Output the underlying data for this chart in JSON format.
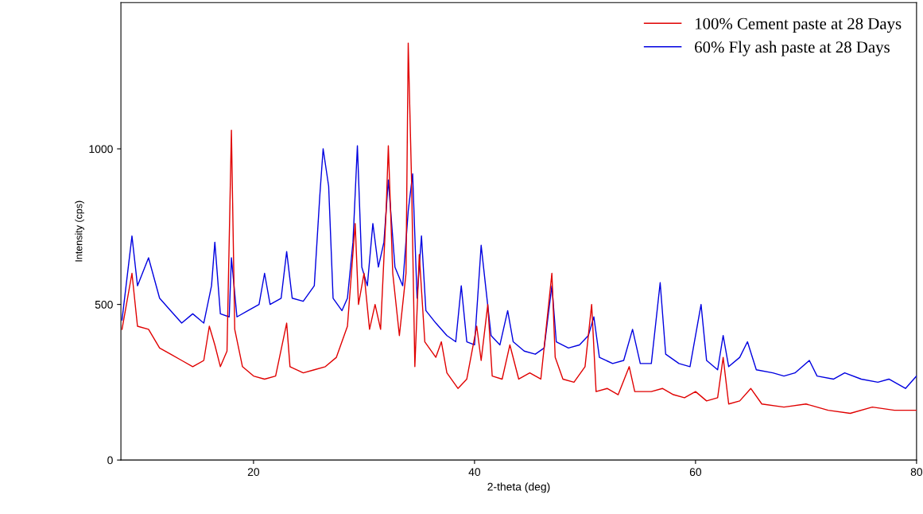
{
  "chart_data": {
    "type": "line",
    "xlabel": "2-theta (deg)",
    "ylabel": "Intensity (cps)",
    "xlim": [
      8,
      80
    ],
    "ylim": [
      0,
      1470
    ],
    "xticks": [
      20,
      40,
      60,
      80
    ],
    "yticks": [
      0,
      500,
      1000
    ],
    "grid": false,
    "legend": "top right",
    "marker": "none",
    "line_style": "solid",
    "series": [
      {
        "name": "100% Cement paste at 28 Days",
        "color": "#e00000",
        "x": [
          8.1,
          9,
          9.5,
          10.5,
          11.5,
          12.5,
          13.5,
          14.5,
          15.5,
          16,
          16.5,
          17,
          17.6,
          18,
          18.3,
          19,
          20,
          21,
          22,
          23,
          23.3,
          24.5,
          25.5,
          26.5,
          27.5,
          28.5,
          29.2,
          29.5,
          30,
          30.5,
          31,
          31.5,
          32,
          32.2,
          32.6,
          33.2,
          33.8,
          34,
          34.3,
          34.6,
          35,
          35.5,
          36.5,
          37,
          37.5,
          38.5,
          39.3,
          40.2,
          40.6,
          41.2,
          41.6,
          42.5,
          43.2,
          44,
          45,
          46,
          47,
          47.3,
          48,
          49,
          50,
          50.6,
          51,
          52,
          53,
          54,
          54.5,
          56,
          57,
          58,
          59,
          60,
          61,
          62,
          62.5,
          63,
          64,
          65,
          66,
          68,
          70,
          72,
          74,
          76,
          78,
          80
        ],
        "values": [
          420,
          600,
          430,
          420,
          360,
          340,
          320,
          300,
          320,
          430,
          370,
          300,
          350,
          1060,
          420,
          300,
          270,
          260,
          270,
          440,
          300,
          280,
          290,
          300,
          330,
          430,
          760,
          500,
          600,
          420,
          500,
          420,
          800,
          1010,
          600,
          400,
          600,
          1340,
          900,
          300,
          660,
          380,
          330,
          380,
          280,
          230,
          260,
          430,
          320,
          500,
          270,
          260,
          370,
          260,
          280,
          260,
          600,
          330,
          260,
          250,
          300,
          500,
          220,
          230,
          210,
          300,
          220,
          220,
          230,
          210,
          200,
          220,
          190,
          200,
          330,
          180,
          190,
          230,
          180,
          170,
          180,
          160,
          150,
          170,
          160,
          160
        ]
      },
      {
        "name": "60% Fly ash paste at 28 Days",
        "color": "#0000e0",
        "x": [
          8.1,
          9,
          9.5,
          10.5,
          11.5,
          12.5,
          13.5,
          14.5,
          15.5,
          16.2,
          16.5,
          17,
          17.8,
          18,
          18.5,
          19.5,
          20.5,
          21,
          21.5,
          22.5,
          23,
          23.5,
          24.5,
          25.5,
          26,
          26.3,
          26.8,
          27.2,
          28,
          28.5,
          29,
          29.4,
          29.8,
          30.3,
          30.8,
          31.3,
          31.8,
          32.2,
          32.8,
          33.5,
          34,
          34.4,
          34.8,
          35.2,
          35.6,
          36.5,
          37.5,
          38.3,
          38.8,
          39.3,
          40,
          40.6,
          41,
          41.5,
          42.3,
          43,
          43.5,
          44.5,
          45.5,
          46.3,
          47,
          47.4,
          48.5,
          49.5,
          50.3,
          50.8,
          51.3,
          52.5,
          53.5,
          54.3,
          55,
          56,
          56.8,
          57.3,
          58.5,
          59.5,
          60.5,
          61,
          62,
          62.5,
          63,
          64,
          64.7,
          65.5,
          67,
          68,
          69,
          70.3,
          71,
          72.5,
          73.5,
          75,
          76.5,
          77.5,
          79,
          80
        ],
        "values": [
          450,
          720,
          560,
          650,
          520,
          480,
          440,
          470,
          440,
          560,
          700,
          470,
          460,
          650,
          460,
          480,
          500,
          600,
          500,
          520,
          670,
          520,
          510,
          560,
          850,
          1000,
          880,
          520,
          480,
          520,
          700,
          1010,
          620,
          560,
          760,
          620,
          700,
          900,
          620,
          560,
          800,
          920,
          520,
          720,
          480,
          440,
          400,
          380,
          560,
          380,
          370,
          690,
          560,
          400,
          370,
          480,
          380,
          350,
          340,
          360,
          560,
          380,
          360,
          370,
          400,
          460,
          330,
          310,
          320,
          420,
          310,
          310,
          570,
          340,
          310,
          300,
          500,
          320,
          290,
          400,
          300,
          330,
          380,
          290,
          280,
          270,
          280,
          320,
          270,
          260,
          280,
          260,
          250,
          260,
          230,
          270
        ]
      }
    ]
  }
}
